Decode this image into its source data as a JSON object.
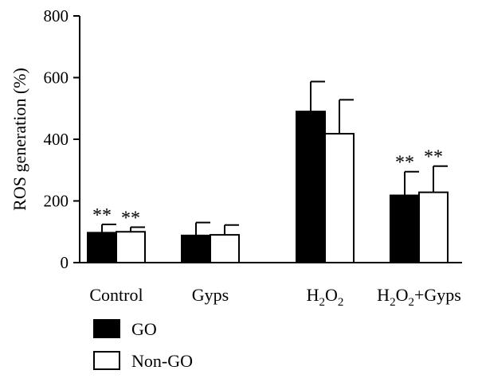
{
  "chart_data": {
    "type": "bar",
    "title": "",
    "xlabel": "",
    "ylabel": "ROS generation (%)",
    "ylim": [
      0,
      800
    ],
    "yticks": [
      "0",
      "200",
      "400",
      "600",
      "800"
    ],
    "categories": [
      {
        "base": "Control",
        "parts": []
      },
      {
        "base": "Gyps",
        "parts": []
      },
      {
        "base": "H",
        "parts": [
          {
            "t": "2",
            "sub": true
          },
          {
            "t": "O",
            "sub": false
          },
          {
            "t": "2",
            "sub": true
          }
        ]
      },
      {
        "base": "H",
        "parts": [
          {
            "t": "2",
            "sub": true
          },
          {
            "t": "O",
            "sub": false
          },
          {
            "t": "2",
            "sub": true
          },
          {
            "t": "+Gyps",
            "sub": false
          }
        ]
      }
    ],
    "category_labels": [
      "Control",
      "Gyps",
      "H2O2",
      "H2O2+Gyps"
    ],
    "series": [
      {
        "name": "GO",
        "color": "#000000",
        "values": [
          97,
          88,
          490,
          218
        ],
        "errors": [
          27,
          42,
          97,
          77
        ],
        "annotations": [
          "**",
          "",
          "",
          "**"
        ]
      },
      {
        "name": "Non-GO",
        "color": "#ffffff",
        "values": [
          100,
          90,
          418,
          228
        ],
        "errors": [
          15,
          32,
          110,
          85
        ],
        "annotations": [
          "**",
          "",
          "",
          "**"
        ]
      }
    ],
    "grid": false,
    "legend_position": "bottom-left"
  }
}
